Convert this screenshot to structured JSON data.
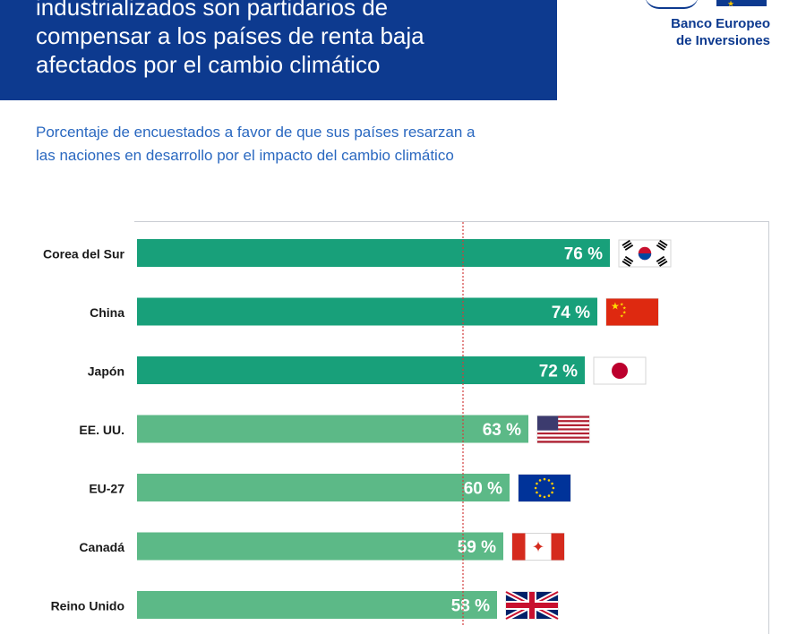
{
  "header": {
    "title_lines": [
      "industrializados son partidarios de",
      "compensar a los países de renta baja",
      "afectados por el cambio climático"
    ]
  },
  "logo": {
    "line1": "Banco Europeo",
    "line2": "de Inversiones"
  },
  "subtitle_lines": [
    "Porcentaje de encuestados a favor de que sus países resarzan a",
    "las naciones en desarrollo por el impacto del cambio climático"
  ],
  "colors": {
    "header_bg": "#0d3a8f",
    "bar_dark": "#18a07a",
    "bar_light": "#5cb987",
    "ref_line": "#d23c3c",
    "subtitle": "#2a68c0"
  },
  "chart_data": {
    "type": "bar",
    "orientation": "horizontal",
    "categories": [
      "Corea del Sur",
      "China",
      "Japón",
      "EE. UU.",
      "EU-27",
      "Canadá",
      "Reino Unido"
    ],
    "values": [
      76,
      74,
      72,
      63,
      60,
      59,
      58
    ],
    "value_labels": [
      "76 %",
      "74 %",
      "72 %",
      "63 %",
      "60 %",
      "59 %",
      "58 %"
    ],
    "flags": [
      "south-korea",
      "china",
      "japan",
      "usa",
      "eu",
      "canada",
      "uk"
    ],
    "bar_shade": [
      "dark",
      "dark",
      "dark",
      "light",
      "light",
      "light",
      "light"
    ],
    "reference_line": 52,
    "xlim": [
      0,
      100
    ]
  }
}
